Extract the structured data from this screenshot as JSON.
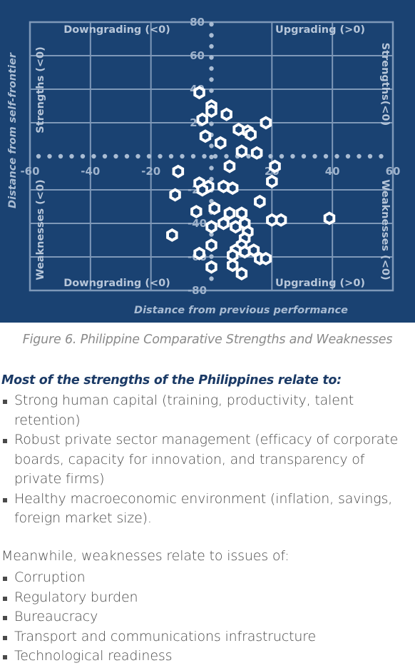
{
  "figure": {
    "caption": "Figure 6. Philippine Comparative Strengths and Weaknesses"
  },
  "chart_data": {
    "type": "scatter",
    "title": "",
    "xlabel": "Distance from previous performance",
    "ylabel": "Distance from self-frontier",
    "xlim": [
      -60,
      60
    ],
    "ylim": [
      -80,
      80
    ],
    "x_ticks": [
      "-60",
      "-40",
      "-20",
      "0",
      "20",
      "40",
      "60"
    ],
    "y_ticks": [
      "-80",
      "-60",
      "-40",
      "-20",
      "0",
      "20",
      "40",
      "60",
      "80"
    ],
    "grid": true,
    "quadrant_labels": {
      "top_left": "Downgrading (<0)",
      "top_right": "Upgrading (>0)",
      "bottom_left": "Downgrading (<0)",
      "bottom_right": "Upgrading (>0)",
      "left_top": "Strengths (<0)",
      "left_bottom": "Weaknesses (<0)",
      "right_top": "Strengths(<0)",
      "right_bottom": "Weaknesses (<0)"
    },
    "colors": {
      "background": "#1a4272",
      "grid": "#7e98b8",
      "axis_dots": "#a9bcd3",
      "marker_fill": "#ffffff",
      "marker_hole": "#1a4272"
    },
    "points": [
      [
        -4,
        38
      ],
      [
        0,
        30
      ],
      [
        0,
        27
      ],
      [
        5,
        25
      ],
      [
        -3,
        22
      ],
      [
        -2,
        12
      ],
      [
        18,
        20
      ],
      [
        9,
        16
      ],
      [
        12,
        15
      ],
      [
        13,
        13
      ],
      [
        3,
        8
      ],
      [
        10,
        3
      ],
      [
        15,
        2
      ],
      [
        6,
        -6
      ],
      [
        21,
        -6
      ],
      [
        -11,
        -9
      ],
      [
        20,
        -15
      ],
      [
        -4,
        -16
      ],
      [
        -1,
        -18
      ],
      [
        4,
        -18
      ],
      [
        7,
        -19
      ],
      [
        -3,
        -20
      ],
      [
        -12,
        -23
      ],
      [
        16,
        -27
      ],
      [
        -5,
        -33
      ],
      [
        1,
        -31
      ],
      [
        6,
        -34
      ],
      [
        10,
        -34
      ],
      [
        20,
        -38
      ],
      [
        23,
        -38
      ],
      [
        39,
        -37
      ],
      [
        0,
        -42
      ],
      [
        4,
        -40
      ],
      [
        8,
        -42
      ],
      [
        11,
        -40
      ],
      [
        12,
        -45
      ],
      [
        -13,
        -47
      ],
      [
        11,
        -49
      ],
      [
        0,
        -53
      ],
      [
        10,
        -53
      ],
      [
        8,
        -56
      ],
      [
        14,
        -56
      ],
      [
        -4,
        -58
      ],
      [
        7,
        -59
      ],
      [
        11,
        -57
      ],
      [
        16,
        -61
      ],
      [
        18,
        -61
      ],
      [
        0,
        -66
      ],
      [
        7,
        -65
      ],
      [
        10,
        -70
      ]
    ]
  },
  "strengths": {
    "heading": "Most of the strengths of the Philippines relate to:",
    "items": [
      "Strong human capital (training, productivity, talent retention)",
      "Robust private sector management (efficacy of corporate boards, capacity for innovation, and transparency of private firms)",
      "Healthy macroeconomic environment (inflation, savings, foreign market size)."
    ]
  },
  "weaknesses": {
    "intro": "Meanwhile, weaknesses relate to issues of:",
    "items": [
      "Corruption",
      "Regulatory burden",
      "Bureaucracy",
      "Transport and communications infrastructure",
      "Technological readiness"
    ]
  }
}
